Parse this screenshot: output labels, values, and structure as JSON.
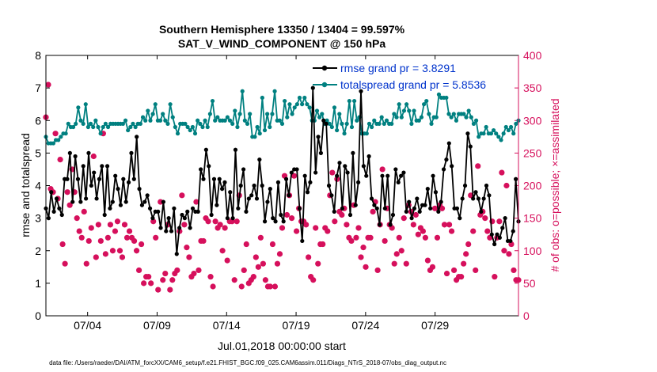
{
  "chart_data": {
    "type": "line",
    "title": "Southern Hemisphere 13350 / 13404 = 99.597%",
    "subtitle": "SAT_V_WIND_COMPONENT @ 150 hPa",
    "xlabel": "Jul.01,2018 00:00:00 start",
    "ylabel_left": "rmse and totalspread",
    "ylabel_right": "# of obs: o=possible; ×=assimilated",
    "footnote": "data file: /Users/raeder/DAI/ATM_forcXX/CAM6_setup/f.e21.FHIST_BGC.f09_025.CAM6assim.011/Diags_NTrS_2018-07/obs_diag_output.nc",
    "xlim": [
      1,
      35
    ],
    "ylim_left": [
      0,
      8
    ],
    "ylim_right": [
      0,
      400
    ],
    "x_tick_labels": [
      "07/04",
      "07/09",
      "07/14",
      "07/19",
      "07/24",
      "07/29"
    ],
    "y_left_tick_labels": [
      "0",
      "1",
      "2",
      "3",
      "4",
      "5",
      "6",
      "7",
      "8"
    ],
    "y_right_tick_labels": [
      "0",
      "50",
      "100",
      "150",
      "200",
      "250",
      "300",
      "350",
      "400"
    ],
    "colors": {
      "rmse": "#000000",
      "spread": "#008080",
      "obs": "#d6105c",
      "legend_text": "#0033cc"
    },
    "series": [
      {
        "name": "rmse grand pr = 3.8291",
        "values": [
          3.3,
          3.0,
          3.8,
          3.2,
          3.6,
          3.3,
          3.1,
          4.2,
          4.2,
          5.0,
          3.5,
          4.9,
          4.2,
          3.5,
          4.6,
          3.6,
          5.0,
          4.0,
          4.4,
          3.6,
          4.2,
          4.6,
          3.1,
          4.6,
          3.3,
          3.5,
          4.3,
          3.9,
          3.4,
          4.2,
          3.5,
          4.1,
          5.0,
          4.2,
          5.5,
          3.9,
          3.4,
          3.5,
          3.7,
          3.3,
          3.0,
          3.2,
          3.2,
          2.7,
          3.5,
          2.6,
          3.0,
          2.6,
          3.3,
          1.9,
          2.7,
          3.1,
          3.0,
          3.2,
          2.7,
          3.3,
          3.2,
          3.2,
          4.5,
          4.2,
          5.1,
          4.6,
          3.1,
          4.2,
          3.4,
          4.2,
          3.9,
          4.1,
          3.0,
          3.8,
          3.0,
          5.1,
          3.3,
          4.0,
          4.5,
          3.2,
          3.6,
          3.7,
          4.0,
          3.6,
          4.8,
          4.0,
          2.9,
          3.5,
          3.9,
          3.0,
          2.9,
          4.1,
          3.1,
          2.9,
          4.2,
          3.7,
          4.4,
          4.5,
          4.5,
          3.3,
          2.3,
          4.3,
          3.8,
          4.1,
          7.0,
          4.4,
          5.5,
          5.0,
          6.0,
          5.9,
          4.0,
          3.7,
          3.2,
          4.3,
          4.7,
          3.3,
          4.6,
          4.4,
          3.1,
          5.0,
          3.4,
          4.1,
          6.9,
          4.6,
          4.3,
          4.9,
          3.6,
          3.4,
          3.3,
          2.8,
          4.3,
          3.3,
          4.3,
          2.8,
          3.1,
          4.5,
          4.1,
          4.3,
          4.4,
          3.2,
          3.5,
          3.0,
          3.3,
          3.6,
          3.2,
          3.4,
          3.4,
          3.9,
          3.3,
          4.3,
          3.8,
          3.2,
          3.5,
          4.5,
          4.8,
          5.3,
          4.6,
          3.3,
          3.3,
          3.0,
          3.6,
          4.0,
          5.6,
          5.2,
          3.6,
          3.8,
          3.6,
          3.2,
          3.6,
          4.0,
          3.7,
          2.5,
          2.2,
          2.5,
          2.4,
          2.7,
          3.0,
          2.3,
          2.3,
          2.6,
          4.2,
          2.9
        ]
      },
      {
        "name": "totalspread grand pr = 5.8536",
        "values": [
          5.5,
          5.3,
          5.3,
          5.3,
          5.4,
          5.4,
          5.5,
          5.6,
          5.6,
          5.9,
          5.8,
          5.8,
          5.9,
          6.4,
          6.0,
          5.9,
          6.5,
          5.8,
          5.9,
          5.8,
          6.0,
          5.8,
          5.6,
          5.8,
          5.9,
          5.8,
          5.9,
          5.9,
          5.9,
          5.9,
          5.9,
          5.9,
          6.0,
          5.7,
          5.8,
          5.9,
          5.8,
          5.9,
          5.9,
          6.1,
          6.0,
          6.3,
          6.0,
          6.2,
          6.5,
          6.0,
          6.0,
          6.2,
          6.0,
          5.9,
          6.5,
          6.1,
          5.8,
          5.6,
          5.9,
          5.9,
          5.9,
          5.8,
          5.7,
          5.8,
          5.6,
          6.0,
          5.9,
          5.8,
          6.0,
          5.8,
          6.2,
          6.6,
          6.0,
          6.1,
          6.0,
          6.0,
          6.0,
          6.1,
          6.0,
          5.9,
          6.3,
          5.8,
          6.2,
          6.9,
          6.0,
          5.9,
          6.2,
          5.5,
          5.5,
          5.8,
          5.6,
          6.7,
          5.7,
          6.2,
          5.8,
          6.2,
          6.9,
          6.0,
          6.0,
          5.9,
          6.6,
          6.1,
          6.5,
          6.2,
          6.4,
          6.5,
          6.7,
          6.5,
          6.7,
          6.5,
          6.4,
          6.0,
          6.0,
          6.3,
          6.1,
          6.2,
          5.9,
          6.0,
          5.9,
          5.8,
          6.4,
          5.7,
          6.2,
          5.9,
          5.6,
          5.9,
          6.6,
          5.8,
          6.6,
          6.0,
          6.1,
          5.6,
          5.6,
          5.6,
          5.9,
          5.8,
          6.0,
          5.9,
          5.9,
          6.1,
          5.9,
          6.0,
          5.9,
          5.9,
          6.2,
          6.1,
          6.5,
          6.1,
          6.3,
          6.5,
          6.3,
          5.9,
          6.3,
          6.0,
          6.0,
          6.1,
          6.5,
          6.6,
          6.2,
          5.9,
          6.1,
          6.1,
          6.8,
          6.7,
          6.7,
          6.7,
          6.2,
          6.1,
          6.2,
          6.0,
          6.2,
          6.2,
          6.2,
          6.1,
          6.3,
          6.1,
          5.9,
          6.0,
          5.5,
          5.6,
          5.6,
          5.8,
          5.6,
          5.6,
          5.7,
          5.6,
          5.5,
          5.4,
          5.6,
          5.8,
          5.7,
          5.8,
          5.6,
          5.9,
          6.0
        ]
      },
      {
        "name": "# of obs assimilated",
        "axis": "right",
        "values": [
          305,
          355,
          195,
          190,
          280,
          180,
          240,
          110,
          80,
          190,
          170,
          225,
          190,
          150,
          130,
          120,
          160,
          80,
          115,
          135,
          245,
          90,
          140,
          115,
          280,
          95,
          120,
          140,
          100,
          130,
          145,
          100,
          90,
          140,
          120,
          130,
          120,
          115,
          100,
          70,
          110,
          50,
          60,
          60,
          50,
          145,
          120,
          40,
          175,
          55,
          65,
          140,
          40,
          55,
          65,
          70,
          130,
          185,
          140,
          105,
          90,
          60,
          65,
          175,
          70,
          115,
          115,
          150,
          145,
          60,
          45,
          145,
          135,
          140,
          100,
          135,
          85,
          145,
          145,
          55,
          145,
          185,
          45,
          70,
          110,
          50,
          55,
          60,
          90,
          75,
          120,
          80,
          55,
          45,
          45,
          110,
          45,
          80,
          95,
          135,
          215,
          155,
          185,
          150,
          215,
          130,
          165,
          145,
          145,
          140,
          90,
          60,
          55,
          135,
          80,
          110,
          110,
          135,
          130,
          185,
          220,
          145,
          210,
          160,
          155,
          165,
          140,
          120,
          115,
          170,
          120,
          135,
          90,
          105,
          75,
          120,
          120,
          160,
          175,
          70,
          140,
          225,
          115,
          165,
          140,
          135,
          80,
          95,
          120,
          100,
          150,
          80,
          170,
          160,
          140,
          155,
          125,
          135,
          130,
          120,
          85,
          70,
          75,
          165,
          120,
          170,
          165,
          140,
          65,
          140,
          130,
          70,
          55,
          60,
          60,
          80,
          95,
          110,
          185,
          130,
          70,
          230,
          155,
          160,
          150,
          130,
          120,
          145,
          60,
          120,
          145,
          220,
          100,
          200,
          95,
          110,
          70,
          55,
          55
        ]
      }
    ]
  }
}
